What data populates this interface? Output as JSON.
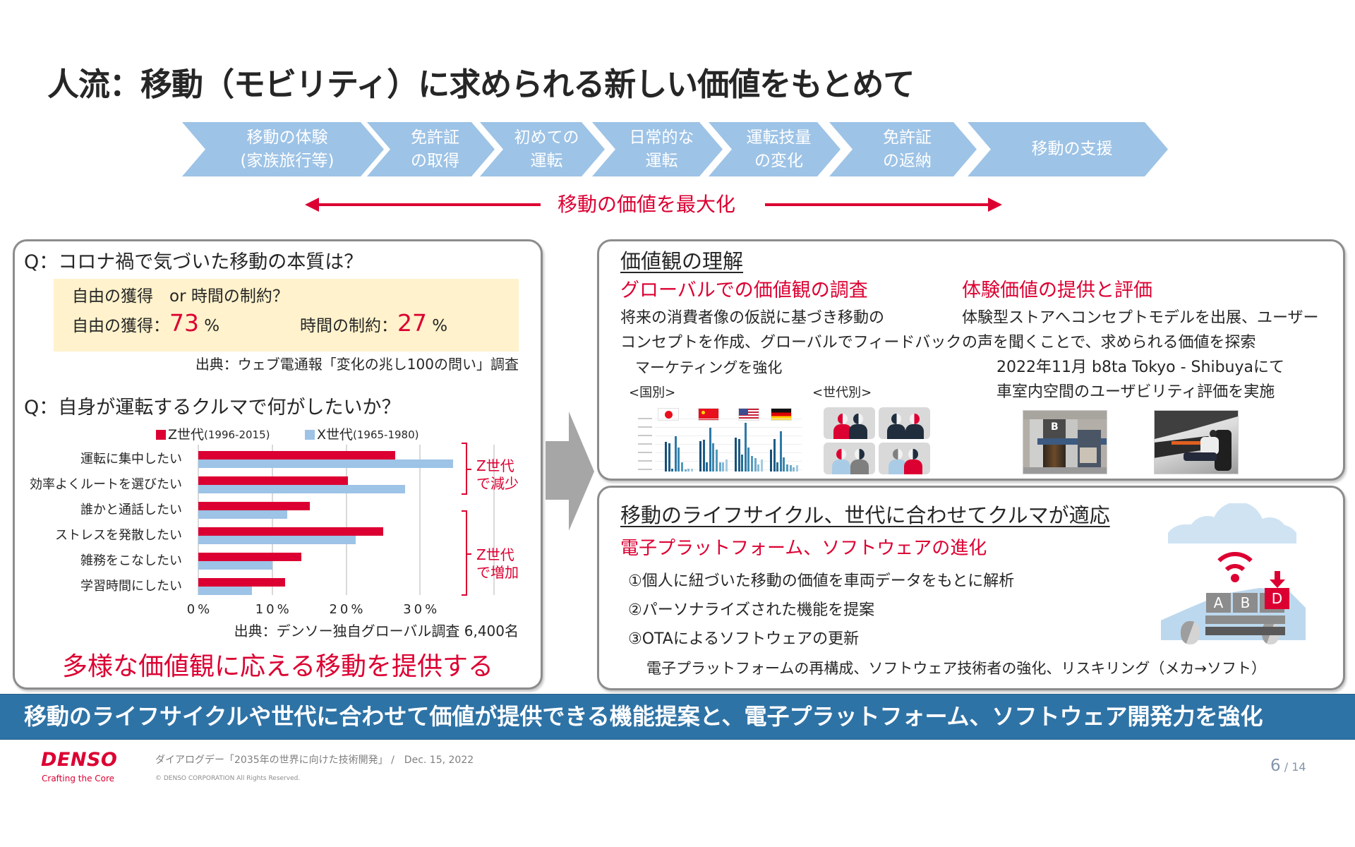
{
  "slide": {
    "title": "人流：移動（モビリティ）に求められる新しい価値をもとめて",
    "lifecycle_steps": [
      {
        "lines": [
          "移動の体験",
          "(家族旅行等)"
        ]
      },
      {
        "lines": [
          "免許証",
          "の取得"
        ]
      },
      {
        "lines": [
          "初めての",
          "運転"
        ]
      },
      {
        "lines": [
          "日常的な",
          "運転"
        ]
      },
      {
        "lines": [
          "運転技量",
          "の変化"
        ]
      },
      {
        "lines": [
          "免許証",
          "の返納"
        ]
      },
      {
        "lines": [
          "移動の支援"
        ]
      }
    ],
    "maximize_label": "移動の価値を最大化",
    "colors": {
      "accent_red": "#dc0032",
      "chevron_blue": "#9dc3e6",
      "banner_blue": "#2e73a6",
      "highlight_yellow": "#fff2cc",
      "note_blue": "#1212cf"
    }
  },
  "left_panel": {
    "q1": "Q：コロナ禍で気づいた移動の本質は？",
    "q1_box": {
      "question": "自由の獲得　or 時間の制約？",
      "freedom_label": "自由の獲得：",
      "freedom_value": "73",
      "freedom_unit": " %",
      "time_label": "時間の制約：",
      "time_value": "27",
      "time_unit": " %"
    },
    "q1_source": "出典：ウェブ電通報「変化の兆し100の問い」調査",
    "q2": "Q：自身が運転するクルマで何がしたいか？",
    "legend": [
      {
        "label": "Z世代",
        "range": "(1996-2015)",
        "color": "#dc0032"
      },
      {
        "label": "X世代",
        "range": "(1965-1980)",
        "color": "#9dc3e6"
      }
    ],
    "bracket_decrease": [
      "Z世代",
      "で減少"
    ],
    "bracket_increase": [
      "Z世代",
      "で増加"
    ],
    "q2_source": "出典：デンソー独自グローバル調査 6,400名",
    "conclusion": "多様な価値観に応える移動を提供する"
  },
  "right_top_panel": {
    "heading": "価値観の理解",
    "global_survey": {
      "title": "グローバルでの価値観の調査",
      "body": [
        "将来の消費者像の仮説に基づき移動の",
        "コンセプトを作成、グローバルでフィードバック"
      ],
      "note": "マーケティングを強化",
      "by_country_label": "<国別>",
      "by_generation_label": "<世代別>"
    },
    "experience": {
      "title": "体験価値の提供と評価",
      "body": [
        "体験型ストアへコンセプトモデルを出展、ユーザー",
        "の声を聞くことで、求められる価値を探索"
      ],
      "note": [
        "2022年11月 b8ta Tokyo - Shibuyaにて",
        "車室内空間のユーザビリティ評価を実施"
      ],
      "store_sign": "B"
    },
    "country_chart": {
      "flags": [
        "japan",
        "china",
        "usa",
        "germany"
      ],
      "groups": [
        [
          60,
          57,
          6,
          72,
          48,
          19,
          5,
          6,
          6
        ],
        [
          61,
          64,
          19,
          88,
          57,
          44,
          19,
          19,
          25
        ],
        [
          68,
          66,
          35,
          99,
          48,
          32,
          27,
          15,
          24
        ],
        [
          44,
          66,
          19,
          82,
          29,
          14,
          13,
          9,
          13
        ]
      ],
      "bar_colors": [
        "#174f78",
        "#1d5d88",
        "#236b96",
        "#2c7aa6",
        "#3d89b0",
        "#5299bd",
        "#6aa9c9",
        "#86bad5",
        "#a4cbe0"
      ]
    }
  },
  "right_bottom_panel": {
    "heading": "移動のライフサイクル、世代に合わせてクルマが適応",
    "subtitle": "電子プラットフォーム、ソフトウェアの進化",
    "items": [
      "①個人に紐づいた移動の価値を車両データをもとに解析",
      "②パーソナライズされた機能を提案",
      "③OTAによるソフトウェアの更新"
    ],
    "note": "電子プラットフォームの再構成、ソフトウェア技術者の強化、リスキリング（メカ→ソフト）",
    "illustration_blocks": [
      "A",
      "B",
      "D"
    ]
  },
  "banner": "移動のライフサイクルや世代に合わせて価値が提供できる機能提案と、電子プラットフォーム、ソフトウェア開発力を強化",
  "footer": {
    "logo": "DENSO",
    "tagline": "Crafting the Core",
    "event": "ダイアログデー「2035年の世界に向けた技術開発」 /",
    "date": "Dec. 15, 2022",
    "copyright": "© DENSO CORPORATION All Rights Reserved.",
    "page_current": "6",
    "page_separator": " / ",
    "page_total": "14"
  },
  "chart_data": {
    "type": "bar",
    "orientation": "horizontal",
    "title": "Q：自身が運転するクルマで何がしたいか？",
    "categories": [
      "運転に集中したい",
      "効率よくルートを選びたい",
      "誰かと通話したい",
      "ストレスを発散したい",
      "雑務をこなしたい",
      "学習時間にしたい"
    ],
    "series": [
      {
        "name": "Z世代(1996-2015)",
        "color": "#dc0032",
        "values": [
          26.6,
          20.2,
          15.1,
          25.0,
          13.9,
          11.7
        ]
      },
      {
        "name": "X世代(1965-1980)",
        "color": "#9dc3e6",
        "values": [
          34.5,
          28.0,
          12.0,
          21.3,
          10.0,
          7.3
        ]
      }
    ],
    "xlabel": "",
    "ylabel": "",
    "xticks": [
      "0%",
      "10%",
      "20%",
      "30%"
    ],
    "xlim": [
      0,
      40
    ],
    "tick_step": 10,
    "grid": true,
    "legend_position": "top",
    "annotations": [
      {
        "text": "Z世代で減少",
        "categories": [
          "運転に集中したい",
          "効率よくルートを選びたい"
        ]
      },
      {
        "text": "Z世代で増加",
        "categories": [
          "誰かと通話したい",
          "ストレスを発散したい",
          "雑務をこなしたい",
          "学習時間にしたい"
        ]
      }
    ],
    "source": "出典：デンソー独自グローバル調査 6,400名"
  }
}
